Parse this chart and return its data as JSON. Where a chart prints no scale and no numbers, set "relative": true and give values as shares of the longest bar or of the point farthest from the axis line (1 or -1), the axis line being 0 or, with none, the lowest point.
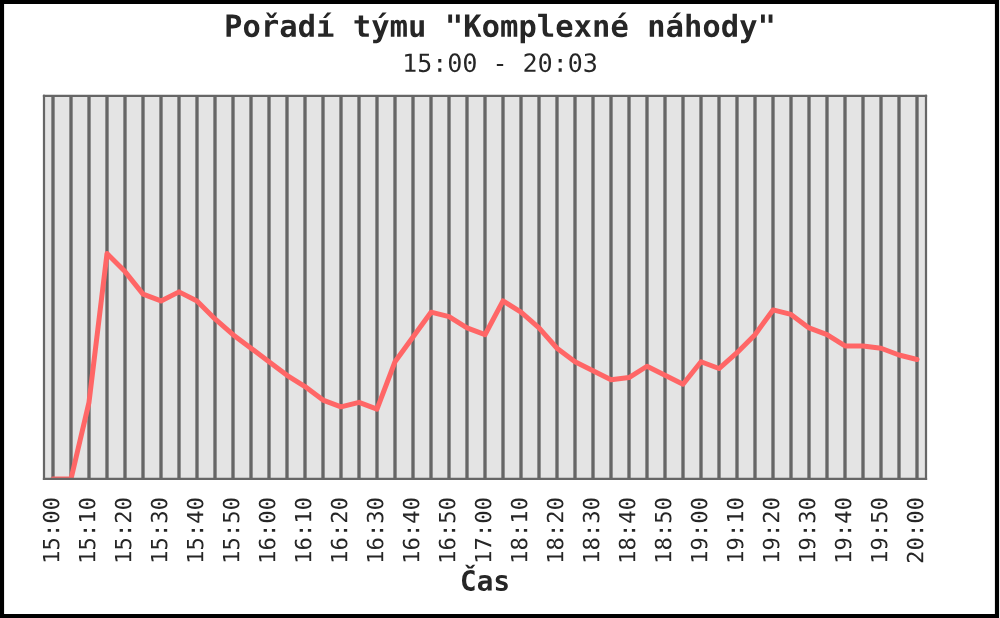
{
  "chart_data": {
    "type": "line",
    "title": "Pořadí týmu \"Komplexné náhody\"",
    "subtitle": "15:00 - 20:03",
    "xlabel": "Čas",
    "categories": [
      "15:00",
      null,
      "15:10",
      null,
      "15:20",
      null,
      "15:30",
      null,
      "15:40",
      null,
      "15:50",
      null,
      "16:00",
      null,
      "16:10",
      null,
      "16:20",
      null,
      "16:30",
      null,
      "16:40",
      null,
      "16:50",
      null,
      "17:00",
      null,
      "18:10",
      null,
      "18:20",
      null,
      "18:30",
      null,
      "18:40",
      null,
      "18:50",
      null,
      "19:00",
      null,
      "19:10",
      null,
      "19:20",
      null,
      "19:30",
      null,
      "19:40",
      null,
      "19:50",
      null,
      "20:00"
    ],
    "series": [
      {
        "color": "#ff6666",
        "values": [
          0,
          0,
          0.34,
          1.0,
          0.92,
          0.82,
          0.79,
          0.83,
          0.79,
          0.71,
          0.64,
          0.58,
          0.52,
          0.46,
          0.41,
          0.35,
          0.32,
          0.34,
          0.31,
          0.52,
          0.63,
          0.74,
          0.72,
          0.67,
          0.64,
          0.79,
          0.74,
          0.67,
          0.58,
          0.52,
          0.48,
          0.44,
          0.45,
          0.5,
          0.46,
          0.42,
          0.52,
          0.49,
          0.56,
          0.64,
          0.75,
          0.73,
          0.67,
          0.64,
          0.59,
          0.59,
          0.58,
          0.55,
          0.53
        ]
      }
    ],
    "relative": true,
    "grid": "x",
    "tick_labels": "x"
  }
}
